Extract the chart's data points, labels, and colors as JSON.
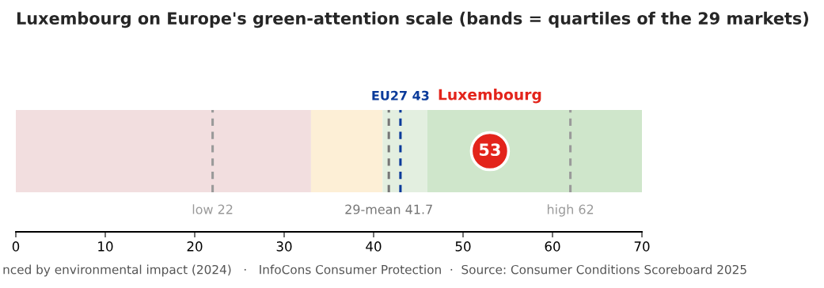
{
  "chart_data": {
    "type": "scatter",
    "orientation": "horizontal",
    "title": "Luxembourg on Europe's green-attention scale (bands = quartiles of the 29 markets)",
    "categories": [
      null
    ],
    "series": [
      {
        "name": "Luxembourg",
        "color": "#e3241b",
        "values": [
          53
        ]
      }
    ],
    "data_labels": true,
    "marker": "circle",
    "xlim": [
      0,
      70
    ],
    "xticks": [
      0,
      10,
      20,
      30,
      40,
      50,
      60,
      70
    ],
    "tick_labels": "x",
    "grid": false,
    "legend": false,
    "bands": [
      {
        "axis": "x",
        "from": 0,
        "to": 33,
        "color": "#f2dedf"
      },
      {
        "axis": "x",
        "from": 33,
        "to": 41,
        "color": "#fdefd6"
      },
      {
        "axis": "x",
        "from": 41,
        "to": 46,
        "color": "#e3efe0"
      },
      {
        "axis": "x",
        "from": 46,
        "to": 70,
        "color": "#cfe6cb"
      }
    ],
    "ref_lines": [
      {
        "axis": "x",
        "value": 22,
        "label": "low 22",
        "color": "#9a9a9a",
        "line_style": "dashed"
      },
      {
        "axis": "x",
        "value": 41.7,
        "label": "29-mean 41.7",
        "color": "#777777",
        "line_style": "dashed"
      },
      {
        "axis": "x",
        "value": 43,
        "label": "EU27 43",
        "color": "#0a3a9a",
        "line_style": "dashed"
      },
      {
        "axis": "x",
        "value": 62,
        "label": "high 62",
        "color": "#9a9a9a",
        "line_style": "dashed"
      }
    ],
    "annotations": [
      "nced by environmental impact (2024)   ·   InfoCons Consumer Protection  ·  Source: Consumer Conditions Scoreboard 2025"
    ]
  }
}
